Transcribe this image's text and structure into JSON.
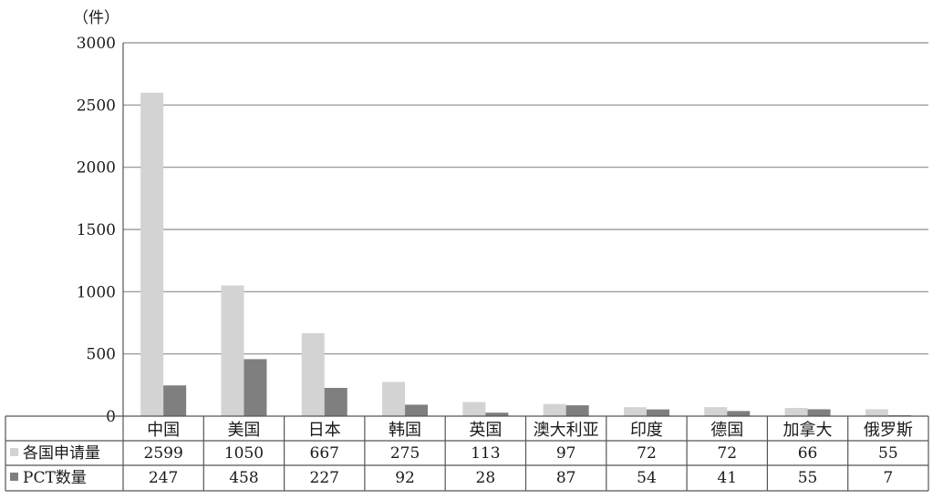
{
  "chart_data": {
    "type": "bar",
    "unit": "（件）",
    "categories": [
      "中国",
      "美国",
      "日本",
      "韩国",
      "英国",
      "澳大利亚",
      "印度",
      "德国",
      "加拿大",
      "俄罗斯"
    ],
    "series": [
      {
        "name": "各国申请量",
        "color": "#d3d3d3",
        "values": [
          2599,
          1050,
          667,
          275,
          113,
          97,
          72,
          72,
          66,
          55
        ]
      },
      {
        "name": "PCT数量",
        "color": "#7f7f7f",
        "values": [
          247,
          458,
          227,
          92,
          28,
          87,
          54,
          41,
          55,
          7
        ]
      }
    ],
    "ylim": [
      0,
      3000
    ],
    "yticks": [
      0,
      500,
      1000,
      1500,
      2000,
      2500,
      3000
    ],
    "grid": true,
    "legend": "data-table"
  }
}
